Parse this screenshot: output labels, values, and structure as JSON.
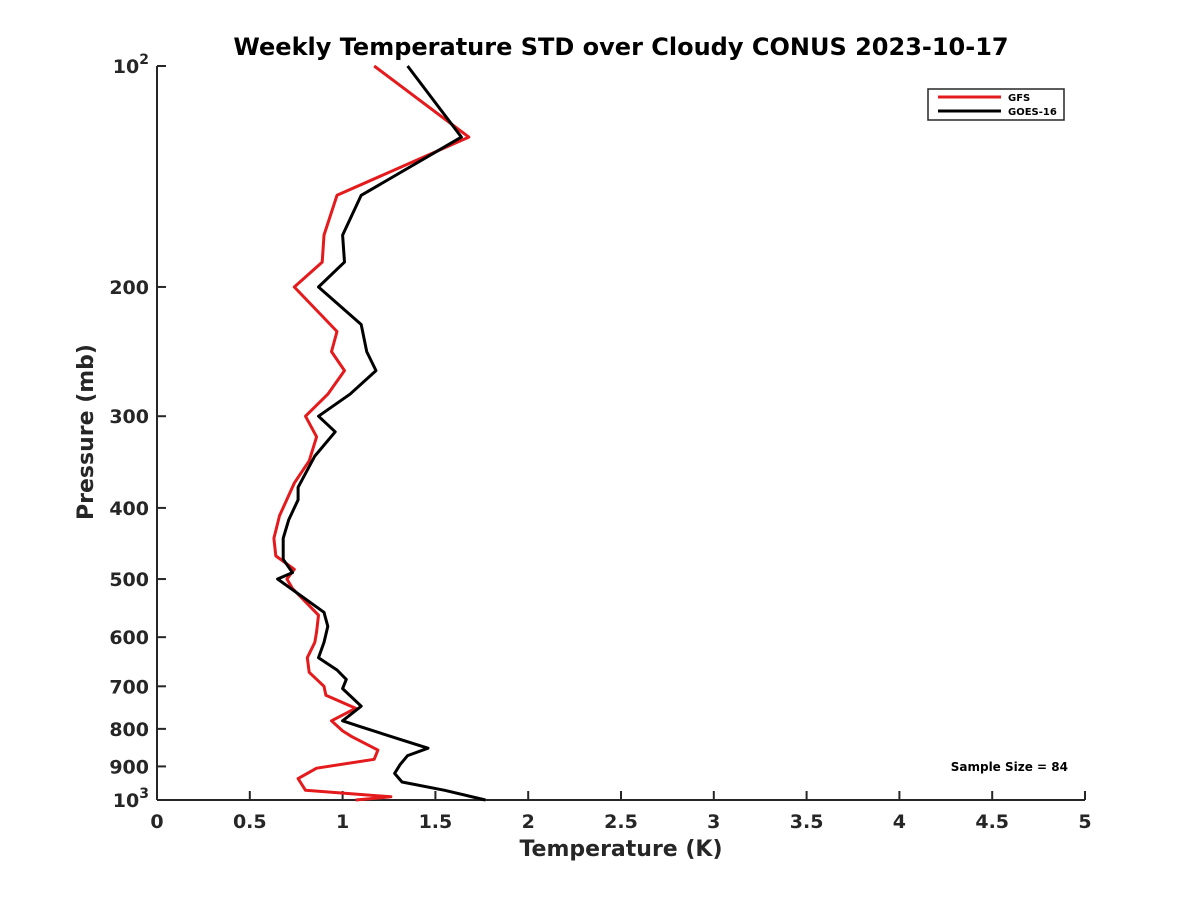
{
  "chart_data": {
    "type": "line",
    "title": "Weekly Temperature STD over Cloudy CONUS 2023-10-17",
    "xlabel": "Temperature (K)",
    "ylabel": "Pressure (mb)",
    "xlim": [
      0,
      5
    ],
    "ylim": [
      100,
      1000
    ],
    "y_scale": "log",
    "y_reversed": true,
    "grid": false,
    "legend_position": "top-right",
    "x_ticks": [
      0,
      0.5,
      1,
      1.5,
      2,
      2.5,
      3,
      3.5,
      4,
      4.5,
      5
    ],
    "x_tick_labels": [
      "0",
      "0.5",
      "1",
      "1.5",
      "2",
      "2.5",
      "3",
      "3.5",
      "4",
      "4.5",
      "5"
    ],
    "y_ticks": [
      100,
      200,
      300,
      400,
      500,
      600,
      700,
      800,
      900,
      1000
    ],
    "y_tick_labels": [
      {
        "base": "10",
        "exp": "2"
      },
      {
        "base": "200"
      },
      {
        "base": "300"
      },
      {
        "base": "400"
      },
      {
        "base": "500"
      },
      {
        "base": "600"
      },
      {
        "base": "700"
      },
      {
        "base": "800"
      },
      {
        "base": "900"
      },
      {
        "base": "10",
        "exp": "3"
      }
    ],
    "annotation": "Sample Size = 84",
    "series": [
      {
        "name": "GFS",
        "color": "#e41a1c",
        "points": [
          [
            1.17,
            100
          ],
          [
            1.68,
            125
          ],
          [
            0.97,
            150
          ],
          [
            0.9,
            170
          ],
          [
            0.89,
            185
          ],
          [
            0.74,
            200
          ],
          [
            0.97,
            230
          ],
          [
            0.94,
            245
          ],
          [
            1.01,
            260
          ],
          [
            0.92,
            280
          ],
          [
            0.8,
            300
          ],
          [
            0.86,
            320
          ],
          [
            0.82,
            345
          ],
          [
            0.74,
            370
          ],
          [
            0.66,
            410
          ],
          [
            0.63,
            440
          ],
          [
            0.64,
            465
          ],
          [
            0.74,
            485
          ],
          [
            0.7,
            500
          ],
          [
            0.73,
            515
          ],
          [
            0.87,
            560
          ],
          [
            0.86,
            590
          ],
          [
            0.85,
            610
          ],
          [
            0.81,
            640
          ],
          [
            0.82,
            670
          ],
          [
            0.9,
            700
          ],
          [
            0.91,
            720
          ],
          [
            1.07,
            750
          ],
          [
            0.94,
            780
          ],
          [
            1.0,
            805
          ],
          [
            1.05,
            820
          ],
          [
            1.19,
            855
          ],
          [
            1.17,
            880
          ],
          [
            0.86,
            905
          ],
          [
            0.76,
            935
          ],
          [
            0.8,
            970
          ],
          [
            1.26,
            990
          ],
          [
            1.07,
            1000
          ]
        ]
      },
      {
        "name": "GOES-16",
        "color": "#000000",
        "points": [
          [
            1.35,
            100
          ],
          [
            1.64,
            125
          ],
          [
            1.1,
            150
          ],
          [
            1.0,
            170
          ],
          [
            1.01,
            185
          ],
          [
            0.87,
            200
          ],
          [
            1.1,
            225
          ],
          [
            1.13,
            245
          ],
          [
            1.18,
            260
          ],
          [
            1.04,
            280
          ],
          [
            0.87,
            300
          ],
          [
            0.96,
            315
          ],
          [
            0.85,
            340
          ],
          [
            0.76,
            375
          ],
          [
            0.76,
            390
          ],
          [
            0.71,
            415
          ],
          [
            0.68,
            440
          ],
          [
            0.68,
            470
          ],
          [
            0.73,
            490
          ],
          [
            0.65,
            500
          ],
          [
            0.9,
            555
          ],
          [
            0.92,
            580
          ],
          [
            0.9,
            610
          ],
          [
            0.87,
            640
          ],
          [
            0.97,
            665
          ],
          [
            1.02,
            685
          ],
          [
            1.0,
            705
          ],
          [
            1.1,
            745
          ],
          [
            1.0,
            780
          ],
          [
            1.1,
            795
          ],
          [
            1.33,
            830
          ],
          [
            1.46,
            850
          ],
          [
            1.35,
            870
          ],
          [
            1.31,
            895
          ],
          [
            1.28,
            920
          ],
          [
            1.32,
            945
          ],
          [
            1.55,
            970
          ],
          [
            1.77,
            1000
          ]
        ]
      }
    ]
  }
}
